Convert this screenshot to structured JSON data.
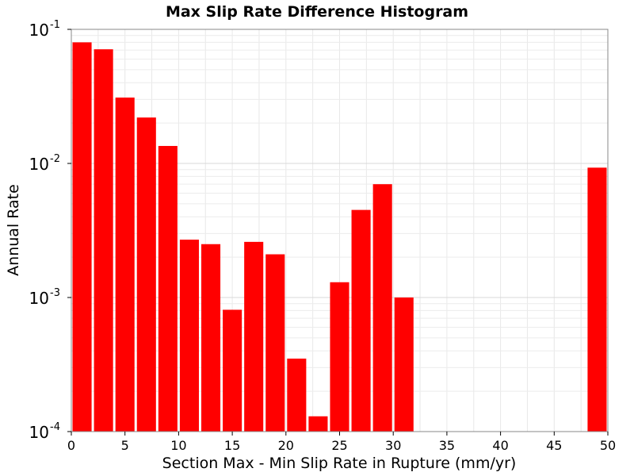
{
  "chart_data": {
    "type": "bar",
    "title": "Max Slip Rate Difference Histogram",
    "xlabel": "Section Max - Min Slip Rate in Rupture (mm/yr)",
    "ylabel": "Annual Rate",
    "xlim": [
      0,
      50
    ],
    "ylim": [
      0.0001,
      0.1
    ],
    "yscale": "log",
    "grid": true,
    "bar_color": "#ff0000",
    "bin_width": 2,
    "xticks": [
      "0",
      "5",
      "10",
      "15",
      "20",
      "25",
      "30",
      "35",
      "40",
      "45",
      "50"
    ],
    "yticks": [
      {
        "base": "10",
        "exp": "-4"
      },
      {
        "base": "10",
        "exp": "-3"
      },
      {
        "base": "10",
        "exp": "-2"
      },
      {
        "base": "10",
        "exp": "-1"
      }
    ],
    "bars": [
      {
        "x": 1,
        "value": 0.08
      },
      {
        "x": 3,
        "value": 0.071
      },
      {
        "x": 5,
        "value": 0.031
      },
      {
        "x": 7,
        "value": 0.022
      },
      {
        "x": 9,
        "value": 0.0135
      },
      {
        "x": 11,
        "value": 0.0027
      },
      {
        "x": 13,
        "value": 0.0025
      },
      {
        "x": 15,
        "value": 0.00081
      },
      {
        "x": 17,
        "value": 0.0026
      },
      {
        "x": 19,
        "value": 0.0021
      },
      {
        "x": 21,
        "value": 0.00035
      },
      {
        "x": 23,
        "value": 0.00013
      },
      {
        "x": 25,
        "value": 0.0013
      },
      {
        "x": 27,
        "value": 0.0045
      },
      {
        "x": 29,
        "value": 0.007
      },
      {
        "x": 31,
        "value": 0.001
      },
      {
        "x": 49,
        "value": 0.0093
      }
    ]
  }
}
